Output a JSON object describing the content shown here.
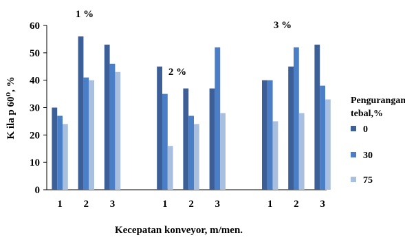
{
  "chart_data": {
    "type": "bar",
    "title": "",
    "xlabel": "Kecepatan konveyor, m/men.",
    "ylabel": "K ila p 60⁰, %",
    "ylim": [
      0,
      60
    ],
    "yticks": [
      0,
      10,
      20,
      30,
      40,
      50,
      60
    ],
    "groups": [
      {
        "label": "1 %",
        "categories": [
          "1",
          "2",
          "3"
        ]
      },
      {
        "label": "2 %",
        "categories": [
          "1",
          "2",
          "3"
        ]
      },
      {
        "label": "3 %",
        "categories": [
          "1",
          "2",
          "3"
        ]
      }
    ],
    "legend": {
      "title": "Pengurangan tebal,%",
      "placement": "right"
    },
    "series": [
      {
        "name": "0",
        "color": "#3d5f98",
        "values": [
          30,
          56,
          53,
          45,
          37,
          37,
          40,
          45,
          53
        ]
      },
      {
        "name": "30",
        "color": "#4a7ec6",
        "values": [
          27,
          41,
          46,
          35,
          27,
          52,
          40,
          52,
          38
        ]
      },
      {
        "name": "75",
        "color": "#a9bfdf",
        "values": [
          24,
          40,
          43,
          16,
          24,
          28,
          25,
          28,
          33
        ]
      }
    ]
  }
}
